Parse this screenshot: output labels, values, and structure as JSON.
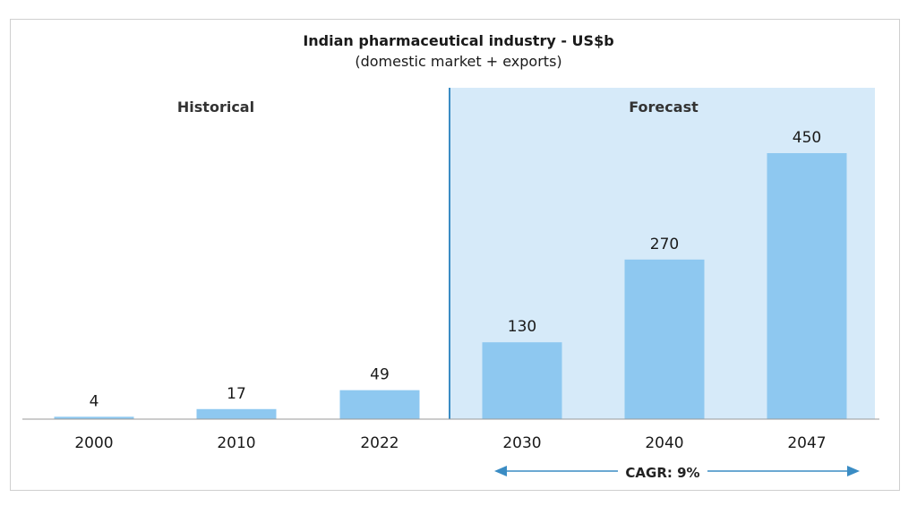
{
  "chart_data": {
    "type": "bar",
    "title": "Indian pharmaceutical industry - US$b",
    "subtitle": "(domestic market + exports)",
    "categories": [
      "2000",
      "2010",
      "2022",
      "2030",
      "2040",
      "2047"
    ],
    "values": [
      4,
      17,
      49,
      130,
      270,
      450
    ],
    "ylim": [
      0,
      450
    ],
    "sections": {
      "historical": "Historical",
      "forecast": "Forecast"
    },
    "annotation": "CAGR: 9%",
    "grid": false,
    "colors": {
      "bar": "#8ec8f0",
      "forecast_bg": "#d6eaf9",
      "divider": "#3a8cc4",
      "arrow": "#3a8cc4",
      "axis": "#9a9a9a"
    }
  }
}
